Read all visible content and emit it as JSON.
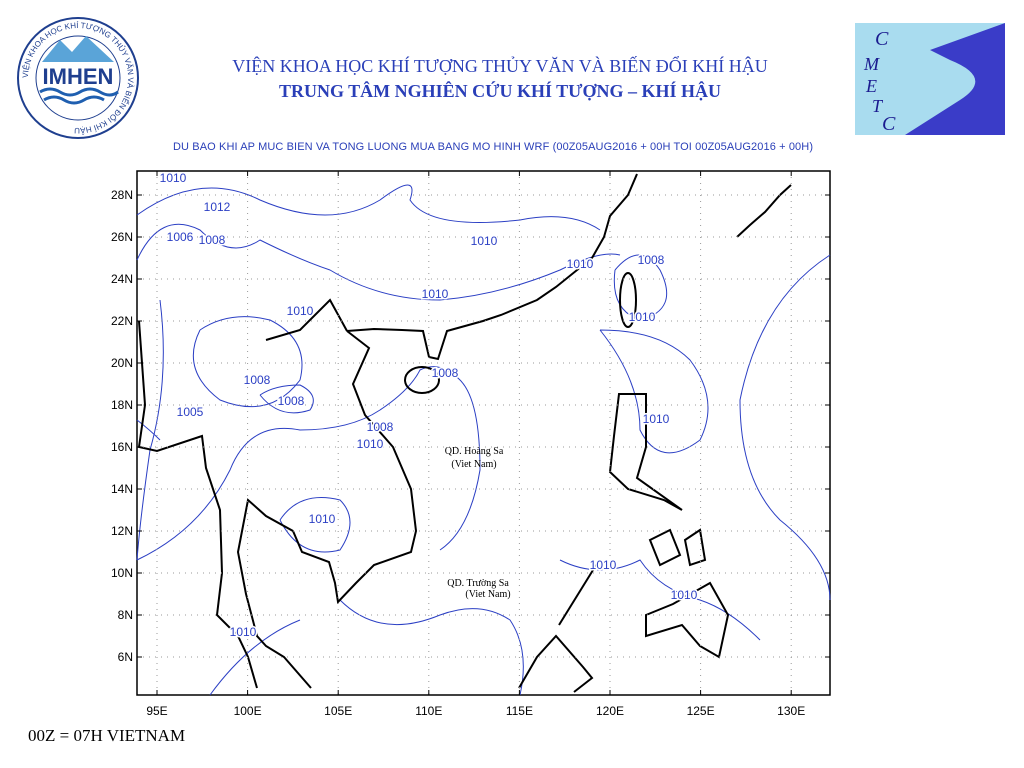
{
  "header": {
    "org_line1": "VIỆN KHOA HỌC KHÍ TƯỢNG THỦY VĂN VÀ BIẾN ĐỔI KHÍ HẬU",
    "org_line2": "TRUNG TÂM NGHIÊN CỨU KHÍ TƯỢNG – KHÍ HẬU",
    "forecast_title": "DU BAO KHI AP MUC BIEN VA TONG LUONG MUA BANG MO HINH WRF (00Z05AUG2016 + 00H TOI 00Z05AUG2016 + 00H)"
  },
  "logo_left": {
    "name": "IMHEN",
    "ring_text": "VIỆN KHOA HỌC KHÍ TƯỢNG THỦY VĂN VÀ BIẾN ĐỔI KHÍ HẬU"
  },
  "logo_right": {
    "letters": [
      "C",
      "M",
      "E",
      "T",
      "C"
    ]
  },
  "map": {
    "lat_labels": [
      "28N",
      "26N",
      "24N",
      "22N",
      "20N",
      "18N",
      "16N",
      "14N",
      "12N",
      "10N",
      "8N",
      "6N"
    ],
    "lon_labels": [
      "95E",
      "100E",
      "105E",
      "110E",
      "115E",
      "120E",
      "125E",
      "130E"
    ],
    "contour_labels": [
      "1010",
      "1012",
      "1006",
      "1008",
      "1010",
      "1010",
      "1008",
      "1010",
      "1010",
      "1010",
      "1008",
      "1008",
      "1008",
      "1005",
      "1010",
      "1008",
      "1010",
      "1010",
      "1010",
      "1010",
      "1010"
    ],
    "place_labels": [
      "QD. Hoàng Sa",
      "(Viet Nam)",
      "QD. Trường Sa",
      "(Viet Nam)"
    ]
  },
  "footer": {
    "note": "00Z = 07H VIETNAM"
  }
}
